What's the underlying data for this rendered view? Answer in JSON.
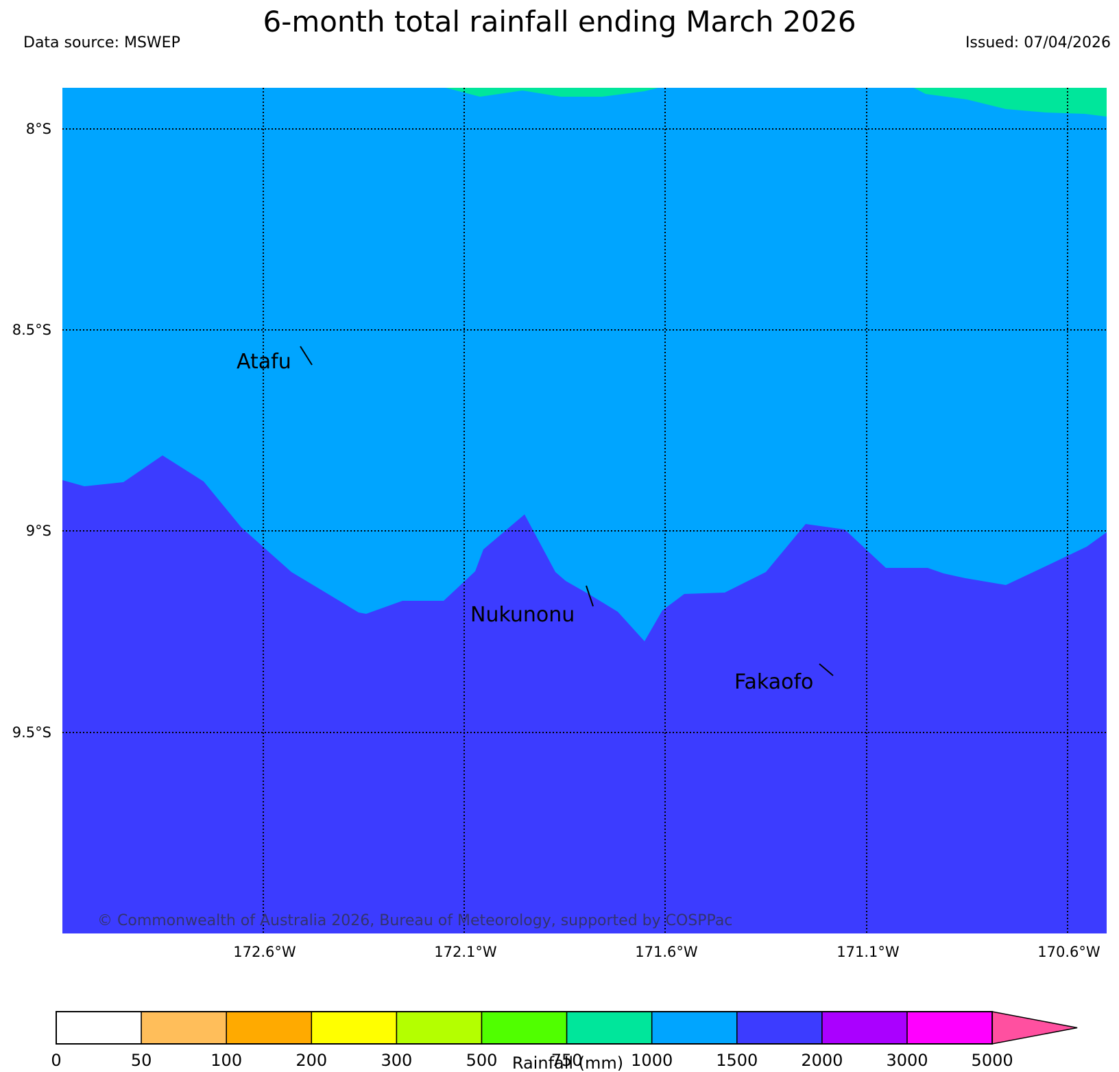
{
  "title": "6-month total rainfall ending March 2026",
  "data_source": "Data source: MSWEP",
  "issued": "Issued: 07/04/2026",
  "latitude_labels": [
    "8°S",
    "8.5°S",
    "9°S",
    "9.5°S"
  ],
  "longitude_labels": [
    "172.6°W",
    "172.1°W",
    "171.6°W",
    "171.1°W",
    "170.6°W"
  ],
  "places": [
    {
      "name": "Atafu"
    },
    {
      "name": "Nukunonu"
    },
    {
      "name": "Fakaofo"
    }
  ],
  "copyright": "© Commonwealth of Australia 2026, Bureau of Meteorology, supported by COSPPac",
  "colorbar": {
    "title": "Rainfall (mm)",
    "tick_labels": [
      "0",
      "50",
      "100",
      "200",
      "300",
      "500",
      "750",
      "1000",
      "1500",
      "2000",
      "3000",
      "5000"
    ],
    "colors": [
      "#ffffff",
      "#ffbe5a",
      "#ffaa00",
      "#ffff00",
      "#b4ff00",
      "#50ff00",
      "#00e69b",
      "#00a5ff",
      "#3c3cff",
      "#aa00ff",
      "#ff00ff",
      "#ff50a0"
    ]
  },
  "map_colors": {
    "1000-1500": "#00a5ff",
    "1500-2000": "#3c3cff",
    "750-1000": "#00e69b"
  }
}
